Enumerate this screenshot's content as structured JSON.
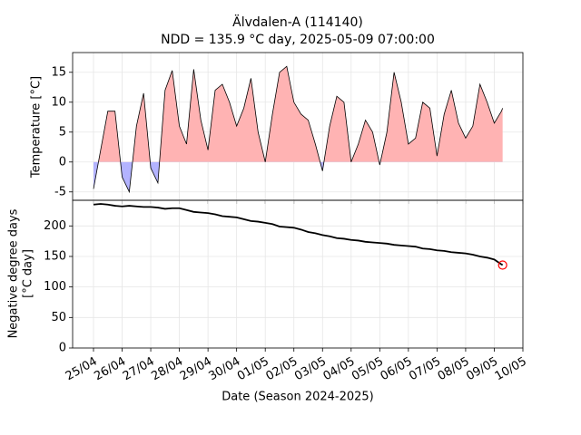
{
  "chart_data": [
    {
      "type": "area",
      "title": "Älvdalen-A (114140)",
      "subtitle": "NDD = 135.9 °C day, 2025-05-09 07:00:00",
      "ylabel": "Temperature [°C]",
      "x": [
        "2025-04-25T00:00",
        "2025-04-25T06:00",
        "2025-04-25T12:00",
        "2025-04-25T18:00",
        "2025-04-26T00:00",
        "2025-04-26T06:00",
        "2025-04-26T12:00",
        "2025-04-26T18:00",
        "2025-04-27T00:00",
        "2025-04-27T06:00",
        "2025-04-27T12:00",
        "2025-04-27T18:00",
        "2025-04-28T00:00",
        "2025-04-28T06:00",
        "2025-04-28T12:00",
        "2025-04-28T18:00",
        "2025-04-29T00:00",
        "2025-04-29T06:00",
        "2025-04-29T12:00",
        "2025-04-29T18:00",
        "2025-04-30T00:00",
        "2025-04-30T06:00",
        "2025-04-30T12:00",
        "2025-04-30T18:00",
        "2025-05-01T00:00",
        "2025-05-01T06:00",
        "2025-05-01T12:00",
        "2025-05-01T18:00",
        "2025-05-02T00:00",
        "2025-05-02T06:00",
        "2025-05-02T12:00",
        "2025-05-02T18:00",
        "2025-05-03T00:00",
        "2025-05-03T06:00",
        "2025-05-03T12:00",
        "2025-05-03T18:00",
        "2025-05-04T00:00",
        "2025-05-04T06:00",
        "2025-05-04T12:00",
        "2025-05-04T18:00",
        "2025-05-05T00:00",
        "2025-05-05T06:00",
        "2025-05-05T12:00",
        "2025-05-05T18:00",
        "2025-05-06T00:00",
        "2025-05-06T06:00",
        "2025-05-06T12:00",
        "2025-05-06T18:00",
        "2025-05-07T00:00",
        "2025-05-07T06:00",
        "2025-05-07T12:00",
        "2025-05-07T18:00",
        "2025-05-08T00:00",
        "2025-05-08T06:00",
        "2025-05-08T12:00",
        "2025-05-08T18:00",
        "2025-05-09T00:00",
        "2025-05-09T06:00",
        "2025-05-09T07:00"
      ],
      "series": [
        {
          "color": "#000000",
          "positive_color": "#ffb3b3",
          "negative_color": "#b3b3ff",
          "values": [
            -4.5,
            2,
            8.5,
            8.5,
            -2.5,
            -5,
            6,
            11.5,
            -1,
            -3.5,
            12,
            15.3,
            6,
            3,
            15.5,
            7,
            2,
            12,
            13,
            10,
            6,
            9,
            14,
            5,
            0,
            8,
            15,
            16,
            10,
            8,
            7,
            3,
            -1.5,
            6,
            11,
            10,
            0,
            3,
            7,
            5,
            -0.5,
            5,
            15,
            10,
            3,
            4,
            10,
            9,
            1,
            8,
            12,
            6.5,
            4,
            6,
            13,
            10,
            6.5,
            8.5,
            9
          ]
        }
      ],
      "xlim": [
        "2025-04-24T06:30",
        "2025-05-10T00:00"
      ],
      "ylim": [
        -6.4,
        18.3
      ],
      "yticks": [
        -5,
        0,
        5,
        10,
        15
      ],
      "grid": true
    },
    {
      "type": "line",
      "ylabel": [
        "Negative degree days",
        "[°C day]"
      ],
      "xlabel": "Date (Season 2024-2025)",
      "x": [
        "2025-04-25T00:00",
        "2025-04-25T06:00",
        "2025-04-25T12:00",
        "2025-04-25T18:00",
        "2025-04-26T00:00",
        "2025-04-26T06:00",
        "2025-04-26T12:00",
        "2025-04-26T18:00",
        "2025-04-27T00:00",
        "2025-04-27T06:00",
        "2025-04-27T12:00",
        "2025-04-27T18:00",
        "2025-04-28T00:00",
        "2025-04-28T06:00",
        "2025-04-28T12:00",
        "2025-04-28T18:00",
        "2025-04-29T00:00",
        "2025-04-29T06:00",
        "2025-04-29T12:00",
        "2025-04-29T18:00",
        "2025-04-30T00:00",
        "2025-04-30T06:00",
        "2025-04-30T12:00",
        "2025-04-30T18:00",
        "2025-05-01T00:00",
        "2025-05-01T06:00",
        "2025-05-01T12:00",
        "2025-05-01T18:00",
        "2025-05-02T00:00",
        "2025-05-02T06:00",
        "2025-05-02T12:00",
        "2025-05-02T18:00",
        "2025-05-03T00:00",
        "2025-05-03T06:00",
        "2025-05-03T12:00",
        "2025-05-03T18:00",
        "2025-05-04T00:00",
        "2025-05-04T06:00",
        "2025-05-04T12:00",
        "2025-05-04T18:00",
        "2025-05-05T00:00",
        "2025-05-05T06:00",
        "2025-05-05T12:00",
        "2025-05-05T18:00",
        "2025-05-06T00:00",
        "2025-05-06T06:00",
        "2025-05-06T12:00",
        "2025-05-06T18:00",
        "2025-05-07T00:00",
        "2025-05-07T06:00",
        "2025-05-07T12:00",
        "2025-05-07T18:00",
        "2025-05-08T00:00",
        "2025-05-08T06:00",
        "2025-05-08T12:00",
        "2025-05-08T18:00",
        "2025-05-09T00:00",
        "2025-05-09T06:00",
        "2025-05-09T07:00"
      ],
      "series": [
        {
          "color": "#000000",
          "marker_color": "#ff0000",
          "values": [
            235,
            236,
            235,
            233,
            232,
            233,
            232,
            231,
            231,
            230,
            228,
            229,
            229,
            226,
            223,
            222,
            221,
            219,
            216,
            215,
            214,
            211,
            208,
            207,
            205,
            203,
            199,
            198,
            197,
            194,
            190,
            188,
            185,
            183,
            180,
            179,
            177,
            176,
            174,
            173,
            172,
            171,
            169,
            168,
            167,
            166,
            163,
            162,
            160,
            159,
            157,
            156,
            155,
            153,
            150,
            148,
            145,
            137,
            135.9
          ]
        }
      ],
      "xlim": [
        "2025-04-24T06:30",
        "2025-05-10T00:00"
      ],
      "xticks": [
        {
          "value": "2025-04-25T00:00",
          "label": "25/04"
        },
        {
          "value": "2025-04-26T00:00",
          "label": "26/04"
        },
        {
          "value": "2025-04-27T00:00",
          "label": "27/04"
        },
        {
          "value": "2025-04-28T00:00",
          "label": "28/04"
        },
        {
          "value": "2025-04-29T00:00",
          "label": "29/04"
        },
        {
          "value": "2025-04-30T00:00",
          "label": "30/04"
        },
        {
          "value": "2025-05-01T00:00",
          "label": "01/05"
        },
        {
          "value": "2025-05-02T00:00",
          "label": "02/05"
        },
        {
          "value": "2025-05-03T00:00",
          "label": "03/05"
        },
        {
          "value": "2025-05-04T00:00",
          "label": "04/05"
        },
        {
          "value": "2025-05-05T00:00",
          "label": "05/05"
        },
        {
          "value": "2025-05-06T00:00",
          "label": "06/05"
        },
        {
          "value": "2025-05-07T00:00",
          "label": "07/05"
        },
        {
          "value": "2025-05-08T00:00",
          "label": "08/05"
        },
        {
          "value": "2025-05-09T00:00",
          "label": "09/05"
        },
        {
          "value": "2025-05-10T00:00",
          "label": "10/05"
        }
      ],
      "ylim": [
        0,
        242
      ],
      "yticks": [
        0,
        50,
        100,
        150,
        200
      ],
      "grid": true
    }
  ]
}
